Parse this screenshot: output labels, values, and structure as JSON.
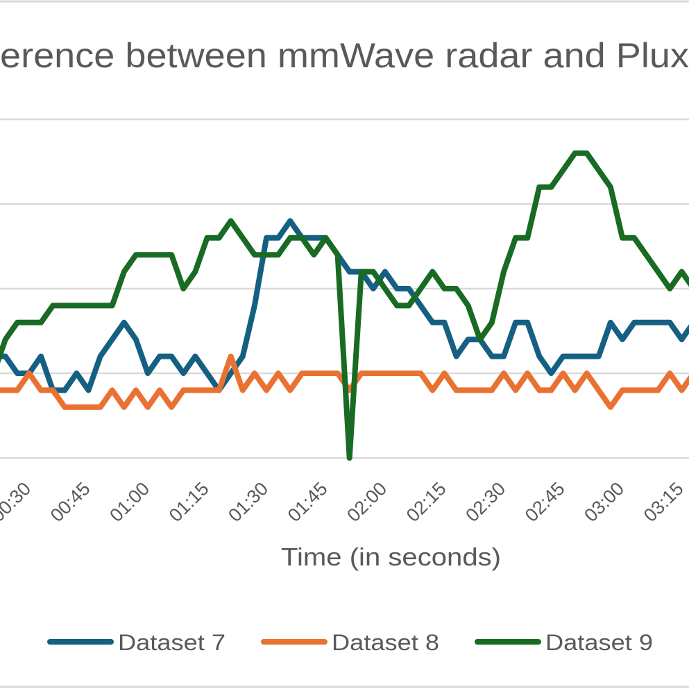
{
  "chart_data": {
    "type": "line",
    "title": "erence between mmWave radar and Plux",
    "xlabel": "Time (in seconds)",
    "ylabel": "",
    "ylim": [
      0,
      20
    ],
    "grid": true,
    "legend_position": "bottom",
    "x": [
      "00:21",
      "00:24",
      "00:27",
      "00:30",
      "00:33",
      "00:36",
      "00:39",
      "00:42",
      "00:45",
      "00:48",
      "00:51",
      "00:54",
      "00:57",
      "01:00",
      "01:03",
      "01:06",
      "01:09",
      "01:12",
      "01:15",
      "01:18",
      "01:21",
      "01:24",
      "01:27",
      "01:30",
      "01:33",
      "01:36",
      "01:39",
      "01:42",
      "01:45",
      "01:48",
      "01:51",
      "01:54",
      "01:57",
      "02:00",
      "02:03",
      "02:06",
      "02:09",
      "02:12",
      "02:15",
      "02:18",
      "02:21",
      "02:24",
      "02:27",
      "02:30",
      "02:33",
      "02:36",
      "02:39",
      "02:42",
      "02:45",
      "02:48",
      "02:51",
      "02:54",
      "02:57",
      "03:00",
      "03:03",
      "03:06",
      "03:09",
      "03:12",
      "03:15",
      "03:18"
    ],
    "x_tick_labels": [
      "00:30",
      "00:45",
      "01:00",
      "01:15",
      "01:30",
      "01:45",
      "02:00",
      "02:15",
      "02:30",
      "02:45",
      "03:00",
      "03:15"
    ],
    "series": [
      {
        "name": "Dataset 7",
        "color": "#156082",
        "values": [
          6,
          6,
          5,
          5,
          6,
          4,
          4,
          5,
          4,
          6,
          7,
          8,
          7,
          5,
          6,
          6,
          5,
          6,
          5,
          4,
          5,
          6,
          9,
          13,
          13,
          14,
          13,
          13,
          13,
          12,
          11,
          11,
          10,
          11,
          10,
          10,
          9,
          8,
          8,
          6,
          7,
          7,
          6,
          6,
          8,
          8,
          6,
          5,
          6,
          6,
          6,
          6,
          8,
          7,
          8,
          8,
          8,
          8,
          7,
          8
        ]
      },
      {
        "name": "Dataset 8",
        "color": "#E97132",
        "values": [
          4,
          4,
          4,
          5,
          4,
          4,
          3,
          3,
          3,
          3,
          4,
          3,
          4,
          3,
          4,
          3,
          4,
          4,
          4,
          4,
          6,
          4,
          5,
          4,
          5,
          4,
          5,
          5,
          5,
          5,
          4,
          5,
          5,
          5,
          5,
          5,
          5,
          4,
          5,
          4,
          4,
          4,
          4,
          5,
          4,
          5,
          4,
          4,
          5,
          4,
          5,
          4,
          3,
          4,
          4,
          4,
          4,
          5,
          4,
          5
        ]
      },
      {
        "name": "Dataset 9",
        "color": "#196B24",
        "values": [
          5,
          7,
          8,
          8,
          8,
          9,
          9,
          9,
          9,
          9,
          9,
          11,
          12,
          12,
          12,
          12,
          10,
          11,
          13,
          13,
          14,
          13,
          12,
          12,
          12,
          13,
          13,
          12,
          13,
          12,
          0,
          11,
          11,
          10,
          9,
          9,
          10,
          11,
          10,
          10,
          9,
          7,
          8,
          11,
          13,
          13,
          16,
          16,
          17,
          18,
          18,
          17,
          16,
          13,
          13,
          12,
          11,
          10,
          11,
          10
        ]
      }
    ]
  }
}
